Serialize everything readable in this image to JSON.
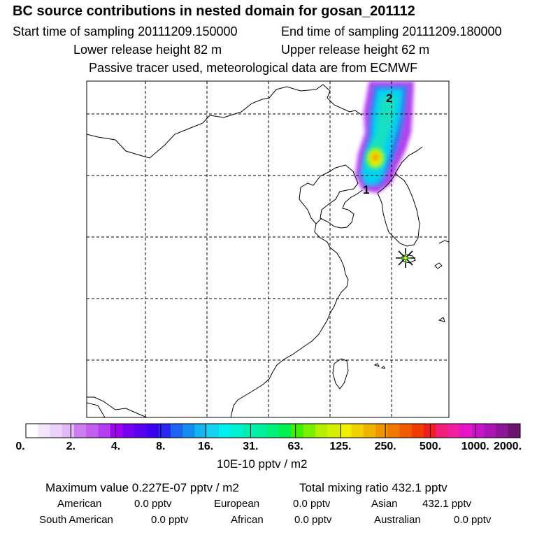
{
  "header": {
    "title": "BC  source contributions in nested domain for gosan_201112",
    "start_time": "Start time of sampling 20111209.150000",
    "end_time": "End time of sampling 20111209.180000",
    "lower_release": "Lower release height   82 m",
    "upper_release": "Upper release height   62 m",
    "tracer_note": "Passive tracer used, meteorological data are from ECMWF"
  },
  "map": {
    "markers": [
      {
        "label": "1"
      },
      {
        "label": "2"
      }
    ],
    "receptor": "gosan-receptor"
  },
  "colorbar": {
    "ticks": [
      "0.",
      "2.",
      "4.",
      "8.",
      "16.",
      "31.",
      "63.",
      "125.",
      "250.",
      "500.",
      "1000.",
      "2000."
    ],
    "colors": [
      "#ffffff",
      "#f4e6fb",
      "#ecd2f8",
      "#e2b9f5",
      "#cc7ef0",
      "#c25ef0",
      "#b53ef0",
      "#a000f0",
      "#7800f0",
      "#5a00f0",
      "#3c00f0",
      "#2828f0",
      "#1e64f0",
      "#148cf0",
      "#14b4f0",
      "#14d2f0",
      "#00f0f0",
      "#00f0d2",
      "#00f0b4",
      "#00f0a0",
      "#00f078",
      "#00f050",
      "#3cf000",
      "#78f000",
      "#b4f000",
      "#d2f000",
      "#f0f000",
      "#f0d200",
      "#f0b400",
      "#f09600",
      "#f07800",
      "#f05a00",
      "#f03c00",
      "#f01e1e",
      "#f01e78",
      "#f01ea0",
      "#e614c8",
      "#c814c8",
      "#aa14b4",
      "#8c1496",
      "#6e146e"
    ],
    "unit_label": "10E-10 pptv / m2"
  },
  "stats": {
    "max_value": "Maximum value  0.227E-07 pptv / m2",
    "total_mixing": "Total mixing ratio      432.1 pptv",
    "american": {
      "label": "American",
      "value": "0.0 pptv"
    },
    "european": {
      "label": "European",
      "value": "0.0 pptv"
    },
    "asian": {
      "label": "Asian",
      "value": "432.1 pptv"
    },
    "south_american": {
      "label": "South American",
      "value": "0.0 pptv"
    },
    "african": {
      "label": "African",
      "value": "0.0 pptv"
    },
    "australian": {
      "label": "Australian",
      "value": "0.0 pptv"
    }
  }
}
